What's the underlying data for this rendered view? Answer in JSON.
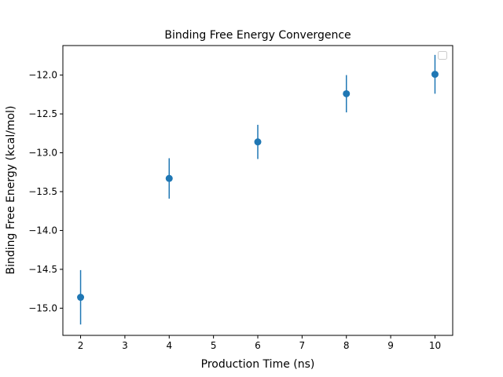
{
  "chart_data": {
    "type": "scatter",
    "title": "Binding Free Energy Convergence",
    "xlabel": "Production Time (ns)",
    "ylabel": "Binding Free Energy (kcal/mol)",
    "xlim": [
      1.6,
      10.4
    ],
    "ylim": [
      -15.35,
      -11.62
    ],
    "xticks": [
      2,
      3,
      4,
      5,
      6,
      7,
      8,
      9,
      10
    ],
    "yticks": [
      -15.0,
      -14.5,
      -14.0,
      -13.5,
      -13.0,
      -12.5,
      -12.0
    ],
    "ytick_labels": [
      "−15.0",
      "−14.5",
      "−14.0",
      "−13.5",
      "−13.0",
      "−12.5",
      "−12.0"
    ],
    "grid": false,
    "legend": "top-right",
    "series": [
      {
        "color": "#1f77b4",
        "x": [
          2,
          4,
          6,
          8,
          10
        ],
        "y": [
          -14.86,
          -13.33,
          -12.86,
          -12.24,
          -11.99
        ],
        "yerr": [
          0.35,
          0.26,
          0.22,
          0.24,
          0.25
        ]
      }
    ]
  }
}
